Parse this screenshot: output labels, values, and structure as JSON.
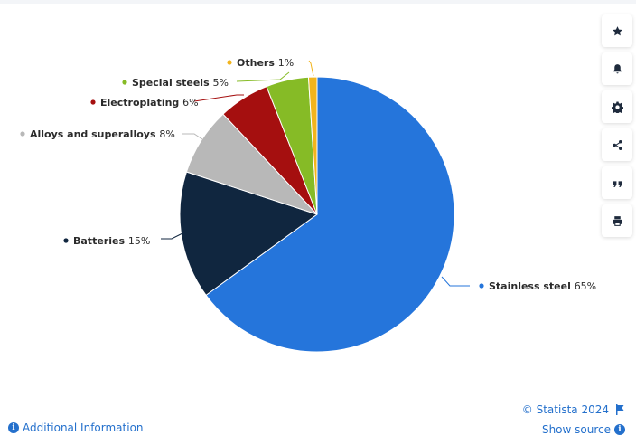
{
  "chart_data": {
    "type": "pie",
    "slices": [
      {
        "label": "Stainless steel",
        "value": 65,
        "value_label": "65%",
        "color": "#2575db"
      },
      {
        "label": "Batteries",
        "value": 15,
        "value_label": "15%",
        "color": "#10263f"
      },
      {
        "label": "Alloys and superalloys",
        "value": 8,
        "value_label": "8%",
        "color": "#b8b8b8"
      },
      {
        "label": "Electroplating",
        "value": 6,
        "value_label": "6%",
        "color": "#a50f0f"
      },
      {
        "label": "Special steels",
        "value": 5,
        "value_label": "5%",
        "color": "#86bb26"
      },
      {
        "label": "Others",
        "value": 1,
        "value_label": "1%",
        "color": "#f2b41d"
      }
    ]
  },
  "sidebar": {
    "items": [
      {
        "icon": "star-icon"
      },
      {
        "icon": "bell-icon"
      },
      {
        "icon": "gear-icon"
      },
      {
        "icon": "share-icon"
      },
      {
        "icon": "quote-icon"
      },
      {
        "icon": "print-icon"
      }
    ]
  },
  "footer": {
    "copyright": "© Statista 2024",
    "show_source": "Show source",
    "additional_info": "Additional Information"
  }
}
